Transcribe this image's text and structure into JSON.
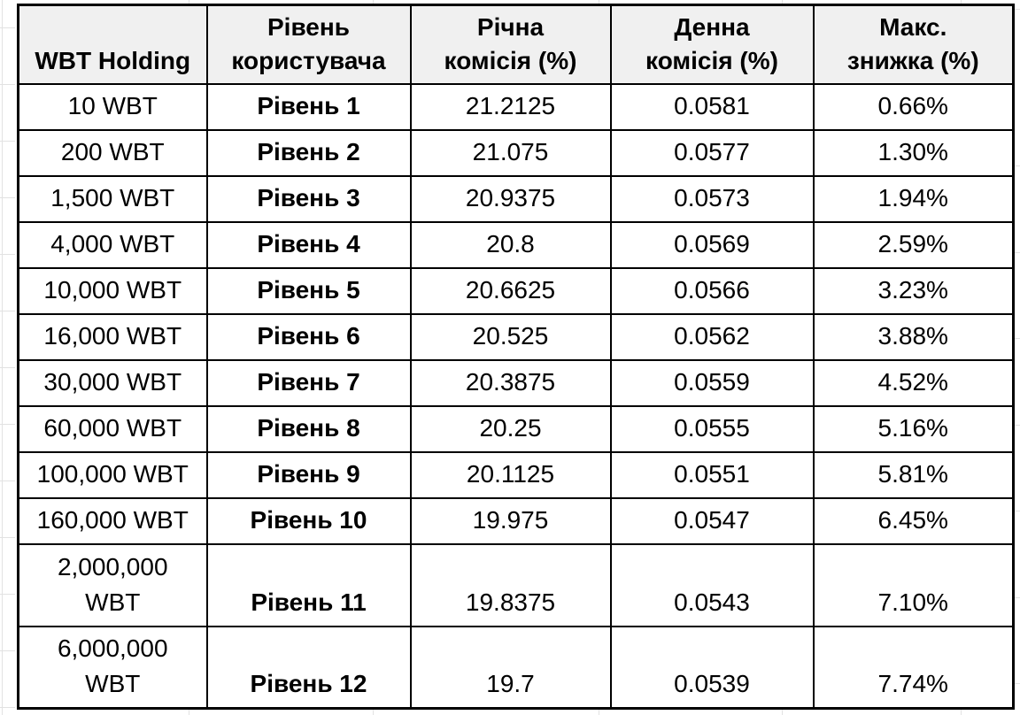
{
  "app": {
    "background_color": "#ffffff",
    "gridline_color": "#e2e2e2",
    "table_border_color": "#000000",
    "header_bg_color": "#f0f0f0",
    "text_color": "#000000"
  },
  "table": {
    "headers": [
      "WBT Holding",
      "Рівень\nкористувача",
      "Річна\nкомісія (%)",
      "Денна\nкомісія (%)",
      "Макс.\nзнижка (%)"
    ],
    "rows": [
      [
        "10 WBT",
        "Рівень 1",
        "21.2125",
        "0.0581",
        "0.66%"
      ],
      [
        "200 WBT",
        "Рівень 2",
        "21.075",
        "0.0577",
        "1.30%"
      ],
      [
        "1,500 WBT",
        "Рівень 3",
        "20.9375",
        "0.0573",
        "1.94%"
      ],
      [
        "4,000 WBT",
        "Рівень 4",
        "20.8",
        "0.0569",
        "2.59%"
      ],
      [
        "10,000 WBT",
        "Рівень 5",
        "20.6625",
        "0.0566",
        "3.23%"
      ],
      [
        "16,000 WBT",
        "Рівень 6",
        "20.525",
        "0.0562",
        "3.88%"
      ],
      [
        "30,000 WBT",
        "Рівень 7",
        "20.3875",
        "0.0559",
        "4.52%"
      ],
      [
        "60,000 WBT",
        "Рівень 8",
        "20.25",
        "0.0555",
        "5.16%"
      ],
      [
        "100,000 WBT",
        "Рівень 9",
        "20.1125",
        "0.0551",
        "5.81%"
      ],
      [
        "160,000 WBT",
        "Рівень 10",
        "19.975",
        "0.0547",
        "6.45%"
      ],
      [
        "2,000,000\nWBT",
        "Рівень 11",
        "19.8375",
        "0.0543",
        "7.10%"
      ],
      [
        "6,000,000\nWBT",
        "Рівень 12",
        "19.7",
        "0.0539",
        "7.74%"
      ]
    ]
  }
}
